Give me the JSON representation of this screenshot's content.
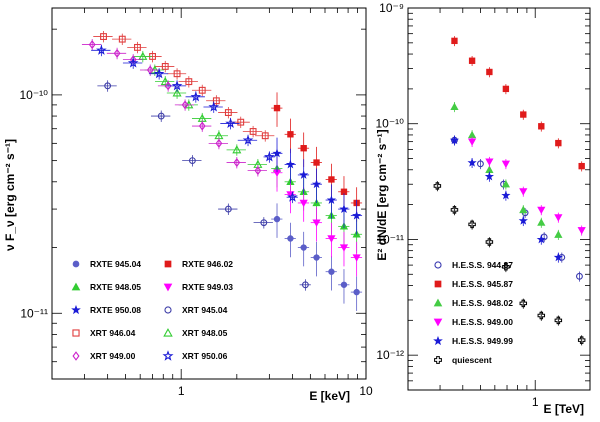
{
  "chart_data": [
    {
      "type": "scatter",
      "xlabel": "E [keV]",
      "ylabel": "ν F_ν [erg cm⁻² s⁻¹]",
      "xscale": "log",
      "yscale": "log",
      "xlim": [
        0.2,
        10
      ],
      "ylim": [
        5e-12,
        2.5e-10
      ],
      "xticks": [
        {
          "v": 1,
          "label": "1"
        },
        {
          "v": 10,
          "label": "10"
        }
      ],
      "yticks": [
        {
          "v": 1e-10,
          "label": "10⁻¹⁰"
        },
        {
          "v": 1e-11,
          "label": "10⁻¹¹"
        }
      ],
      "legend_position": "bottom",
      "series": [
        {
          "name": "RXTE 945.04",
          "marker": "circle",
          "filled": true,
          "color": "#5b5ec8",
          "x": [
            3.3,
            3.9,
            4.6,
            5.4,
            6.5,
            7.6,
            8.9
          ],
          "y": [
            2.7e-11,
            2.2e-11,
            2e-11,
            1.8e-11,
            1.55e-11,
            1.35e-11,
            1.25e-11
          ]
        },
        {
          "name": "RXTE 946.02",
          "marker": "square",
          "filled": true,
          "color": "#e01b1b",
          "x": [
            3.3,
            3.9,
            4.6,
            5.4,
            6.5,
            7.6,
            8.9
          ],
          "y": [
            8.7e-11,
            6.6e-11,
            5.7e-11,
            4.9e-11,
            4.1e-11,
            3.6e-11,
            3.2e-11
          ]
        },
        {
          "name": "RXTE 948.05",
          "marker": "triangle-up",
          "filled": true,
          "color": "#33cc33",
          "x": [
            3.3,
            3.9,
            4.6,
            5.4,
            6.5,
            7.6,
            8.9
          ],
          "y": [
            4.6e-11,
            4e-11,
            3.6e-11,
            3.2e-11,
            2.8e-11,
            2.5e-11,
            2.3e-11
          ]
        },
        {
          "name": "RXTE 949.03",
          "marker": "triangle-down",
          "filled": true,
          "color": "#ff00ff",
          "x": [
            3.3,
            3.9,
            4.6,
            5.4,
            6.5,
            7.6,
            8.9
          ],
          "y": [
            4.4e-11,
            3.5e-11,
            3.2e-11,
            2.6e-11,
            2.2e-11,
            2e-11,
            1.8e-11
          ]
        },
        {
          "name": "RXTE 950.08",
          "marker": "star",
          "filled": true,
          "color": "#1a1ad6",
          "x": [
            3.3,
            3.9,
            4.6,
            5.4,
            6.5,
            7.6,
            8.9
          ],
          "y": [
            5.4e-11,
            4.8e-11,
            4.3e-11,
            3.9e-11,
            3.3e-11,
            3e-11,
            2.8e-11
          ]
        },
        {
          "name": "XRT 945.04",
          "marker": "circle",
          "filled": false,
          "color": "#3e3ea8",
          "x": [
            0.4,
            0.78,
            1.15,
            1.8,
            2.8,
            4.7
          ],
          "y": [
            1.1e-10,
            8e-11,
            5e-11,
            3e-11,
            2.6e-11,
            1.35e-11
          ]
        },
        {
          "name": "XRT 946.04",
          "marker": "square",
          "filled": false,
          "color": "#e03c3c",
          "x": [
            0.38,
            0.48,
            0.58,
            0.7,
            0.82,
            0.95,
            1.1,
            1.3,
            1.55,
            1.8,
            2.1,
            2.45,
            2.85
          ],
          "y": [
            1.85e-10,
            1.8e-10,
            1.65e-10,
            1.5e-10,
            1.35e-10,
            1.25e-10,
            1.15e-10,
            1.05e-10,
            9.4e-11,
            8.3e-11,
            7.5e-11,
            6.8e-11,
            6.5e-11
          ]
        },
        {
          "name": "XRT 948.05",
          "marker": "triangle-up",
          "filled": false,
          "color": "#33cc33",
          "x": [
            0.62,
            0.72,
            0.82,
            0.95,
            1.1,
            1.3,
            1.6,
            2.0,
            2.6
          ],
          "y": [
            1.5e-10,
            1.3e-10,
            1.15e-10,
            1.02e-10,
            9e-11,
            7.8e-11,
            6.5e-11,
            5.6e-11,
            4.8e-11
          ]
        },
        {
          "name": "XRT 949.00",
          "marker": "diamond",
          "filled": false,
          "color": "#cc22cc",
          "x": [
            0.33,
            0.45,
            0.55,
            0.68,
            0.85,
            1.05,
            1.3,
            1.6,
            2.0,
            2.6
          ],
          "y": [
            1.7e-10,
            1.55e-10,
            1.45e-10,
            1.3e-10,
            1.1e-10,
            9e-11,
            7.2e-11,
            6e-11,
            4.9e-11,
            4.5e-11
          ]
        },
        {
          "name": "XRT 950.06",
          "marker": "star",
          "filled": false,
          "color": "#1a1ad6",
          "x": [
            0.37,
            0.55,
            0.76,
            0.95,
            1.2,
            1.5,
            1.85,
            2.3,
            3.0,
            4.0
          ],
          "y": [
            1.6e-10,
            1.4e-10,
            1.25e-10,
            1.1e-10,
            9.8e-11,
            8.8e-11,
            7.4e-11,
            6.2e-11,
            5.2e-11,
            3.4e-11
          ]
        }
      ]
    },
    {
      "type": "scatter",
      "xlabel": "E [TeV]",
      "ylabel": "E² dN/dE [erg cm⁻² s⁻¹]",
      "xscale": "log",
      "yscale": "log",
      "xlim": [
        0.2,
        2.0
      ],
      "ylim": [
        5e-13,
        1e-09
      ],
      "xticks": [
        {
          "v": 1,
          "label": "1"
        }
      ],
      "yticks": [
        {
          "v": 1e-09,
          "label": "10⁻⁹"
        },
        {
          "v": 1e-10,
          "label": "10⁻¹⁰"
        },
        {
          "v": 1e-11,
          "label": "10⁻¹¹"
        },
        {
          "v": 1e-12,
          "label": "10⁻¹²"
        }
      ],
      "legend_position": "bottom-left",
      "series": [
        {
          "name": "H.E.S.S. 944.87",
          "marker": "circle",
          "filled": false,
          "color": "#3a3ab0",
          "x": [
            0.36,
            0.5,
            0.67,
            0.88,
            1.12,
            1.4,
            1.75
          ],
          "y": [
            7.2e-11,
            4.5e-11,
            3e-11,
            1.7e-11,
            1.05e-11,
            7e-12,
            4.8e-12
          ]
        },
        {
          "name": "H.E.S.S. 945.87",
          "marker": "square",
          "filled": true,
          "color": "#e01b1b",
          "x": [
            0.36,
            0.45,
            0.56,
            0.69,
            0.86,
            1.08,
            1.34,
            1.8
          ],
          "y": [
            5.2e-10,
            3.5e-10,
            2.8e-10,
            2e-10,
            1.2e-10,
            9.5e-11,
            6.8e-11,
            4.3e-11
          ]
        },
        {
          "name": "H.E.S.S. 948.02",
          "marker": "triangle-up",
          "filled": true,
          "color": "#44cc44",
          "x": [
            0.36,
            0.45,
            0.56,
            0.69,
            0.86,
            1.08,
            1.34
          ],
          "y": [
            1.4e-10,
            8e-11,
            4e-11,
            3e-11,
            1.8e-11,
            1.4e-11,
            1.1e-11
          ]
        },
        {
          "name": "H.E.S.S. 949.00",
          "marker": "triangle-down",
          "filled": true,
          "color": "#ff00ff",
          "x": [
            0.45,
            0.56,
            0.69,
            0.86,
            1.08,
            1.34,
            1.8
          ],
          "y": [
            7e-11,
            4.7e-11,
            4.5e-11,
            2.6e-11,
            1.8e-11,
            1.55e-11,
            1.2e-11
          ]
        },
        {
          "name": "H.E.S.S. 949.99",
          "marker": "star",
          "filled": true,
          "color": "#1a1ad6",
          "x": [
            0.36,
            0.45,
            0.56,
            0.69,
            0.86,
            1.08,
            1.34
          ],
          "y": [
            7.2e-11,
            4.6e-11,
            3.5e-11,
            2.4e-11,
            1.45e-11,
            1e-11,
            7e-12
          ]
        },
        {
          "name": "quiescent",
          "marker": "cross",
          "filled": false,
          "color": "#000000",
          "x": [
            0.29,
            0.36,
            0.45,
            0.56,
            0.69,
            0.86,
            1.08,
            1.34,
            1.8
          ],
          "y": [
            2.9e-11,
            1.8e-11,
            1.35e-11,
            9.5e-12,
            5.8e-12,
            2.8e-12,
            2.2e-12,
            2e-12,
            1.35e-12
          ]
        }
      ]
    }
  ]
}
